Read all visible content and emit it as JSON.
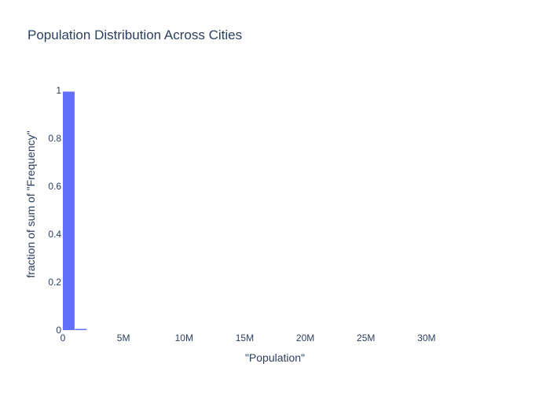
{
  "chart_data": {
    "type": "bar",
    "title": "Population Distribution Across Cities",
    "xlabel": "\"Population\"",
    "ylabel": "fraction of sum of \"Frequency\"",
    "x_ticks": [
      "0",
      "5M",
      "10M",
      "15M",
      "20M",
      "25M",
      "30M"
    ],
    "x_tick_values": [
      0,
      5000000,
      10000000,
      15000000,
      20000000,
      25000000,
      30000000
    ],
    "y_ticks": [
      "0",
      "0.2",
      "0.4",
      "0.6",
      "0.8",
      "1"
    ],
    "y_tick_values": [
      0,
      0.2,
      0.4,
      0.6,
      0.8,
      1
    ],
    "xlim": [
      0,
      35000000
    ],
    "ylim": [
      0,
      1
    ],
    "bins": [
      {
        "x0": 0,
        "x1": 1000000,
        "value": 0.995
      },
      {
        "x0": 1000000,
        "x1": 2000000,
        "value": 0.005
      }
    ],
    "bar_color": "#636efa",
    "grid": false
  }
}
